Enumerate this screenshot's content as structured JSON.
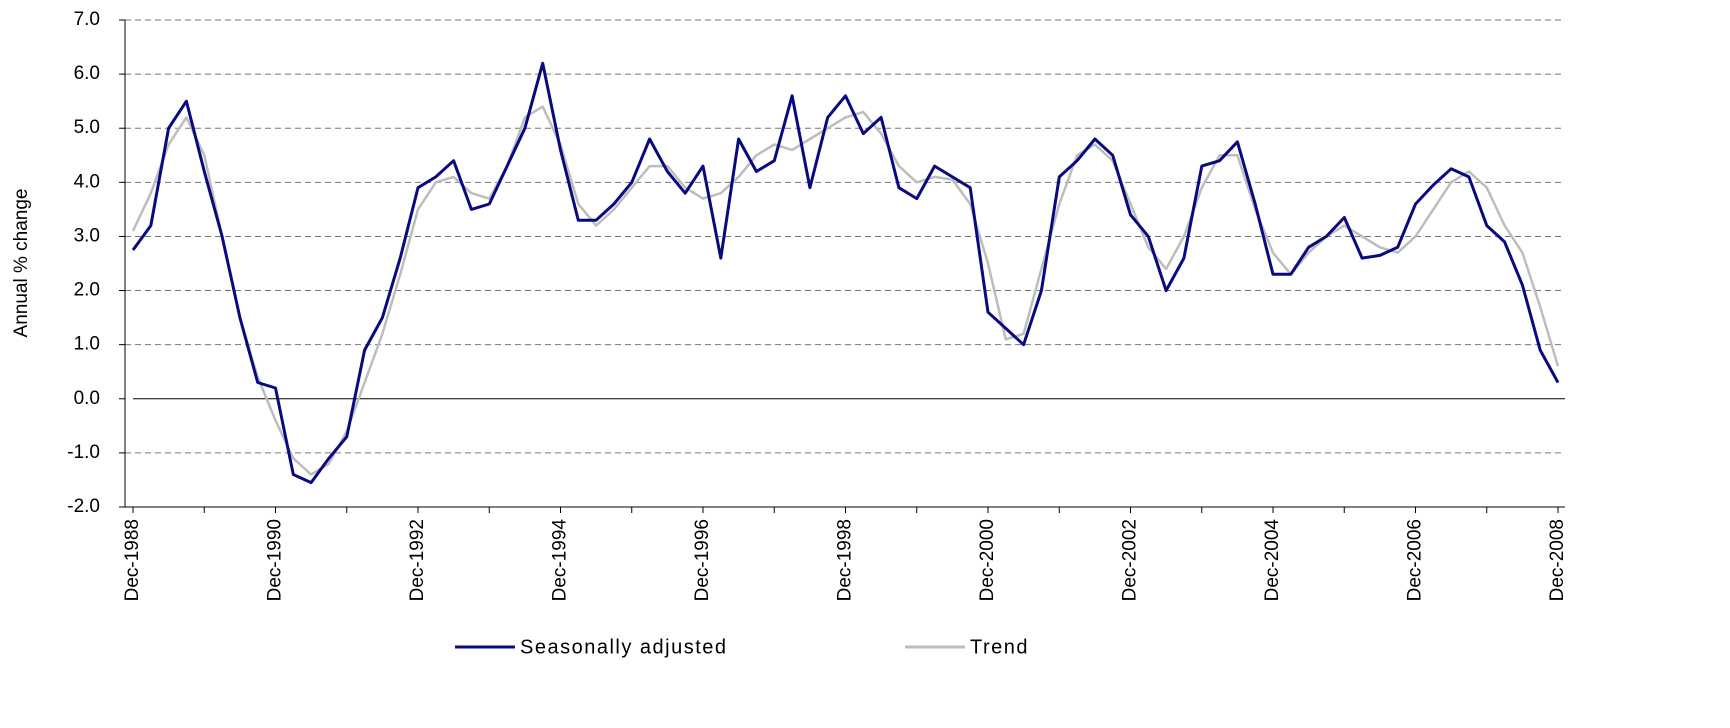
{
  "chart_data": {
    "type": "line",
    "y_label": "Annual % change",
    "categories": [
      "Dec-1988",
      null,
      null,
      null,
      null,
      null,
      null,
      null,
      "Dec-1990",
      null,
      null,
      null,
      null,
      null,
      null,
      null,
      "Dec-1992",
      null,
      null,
      null,
      null,
      null,
      null,
      null,
      "Dec-1994",
      null,
      null,
      null,
      null,
      null,
      null,
      null,
      "Dec-1996",
      null,
      null,
      null,
      null,
      null,
      null,
      null,
      "Dec-1998",
      null,
      null,
      null,
      null,
      null,
      null,
      null,
      "Dec-2000",
      null,
      null,
      null,
      null,
      null,
      null,
      null,
      "Dec-2002",
      null,
      null,
      null,
      null,
      null,
      null,
      null,
      "Dec-2004",
      null,
      null,
      null,
      null,
      null,
      null,
      null,
      "Dec-2006",
      null,
      null,
      null,
      null,
      null,
      null,
      null,
      "Dec-2008"
    ],
    "series": [
      {
        "name": "Seasonally adjusted",
        "color": "#0a0a80",
        "values": [
          2.75,
          3.2,
          5.0,
          5.5,
          4.2,
          3.0,
          1.5,
          0.3,
          0.2,
          -1.4,
          -1.55,
          -1.1,
          -0.7,
          0.9,
          1.5,
          2.6,
          3.9,
          4.1,
          4.4,
          3.5,
          3.6,
          4.3,
          5.0,
          6.2,
          4.6,
          3.3,
          3.3,
          3.6,
          4.0,
          4.8,
          4.2,
          3.8,
          4.3,
          2.6,
          4.8,
          4.2,
          4.4,
          5.6,
          3.9,
          5.2,
          5.6,
          4.9,
          5.2,
          3.9,
          3.7,
          4.3,
          4.1,
          3.9,
          1.6,
          1.3,
          1.0,
          2.0,
          4.1,
          4.4,
          4.8,
          4.5,
          3.4,
          3.0,
          2.0,
          2.6,
          4.3,
          4.4,
          4.75,
          3.6,
          2.3,
          2.3,
          2.8,
          3.0,
          3.35,
          2.6,
          2.65,
          2.8,
          3.6,
          3.95,
          4.25,
          4.1,
          3.2,
          2.9,
          2.1,
          0.9,
          0.3
        ]
      },
      {
        "name": "Trend",
        "color": "#bdbdbd",
        "values": [
          3.1,
          3.8,
          4.7,
          5.2,
          4.5,
          3.0,
          1.5,
          0.4,
          -0.4,
          -1.1,
          -1.4,
          -1.2,
          -0.6,
          0.3,
          1.2,
          2.3,
          3.5,
          4.0,
          4.1,
          3.8,
          3.7,
          4.3,
          5.2,
          5.4,
          4.7,
          3.6,
          3.2,
          3.5,
          3.9,
          4.3,
          4.3,
          3.9,
          3.7,
          3.8,
          4.1,
          4.5,
          4.7,
          4.6,
          4.8,
          5.0,
          5.2,
          5.3,
          4.9,
          4.3,
          4.0,
          4.1,
          4.05,
          3.6,
          2.5,
          1.1,
          1.2,
          2.4,
          3.6,
          4.5,
          4.7,
          4.4,
          3.6,
          2.8,
          2.4,
          3.0,
          3.9,
          4.5,
          4.5,
          3.5,
          2.7,
          2.3,
          2.7,
          3.0,
          3.2,
          3.0,
          2.8,
          2.7,
          3.0,
          3.5,
          4.0,
          4.2,
          3.9,
          3.2,
          2.7,
          1.7,
          0.6
        ]
      }
    ],
    "ylim": [
      -2,
      7
    ],
    "yticks": [
      {
        "value": -2,
        "label": "-2.0"
      },
      {
        "value": -1,
        "label": "-1.0"
      },
      {
        "value": 0,
        "label": "0.0"
      },
      {
        "value": 1,
        "label": "1.0"
      },
      {
        "value": 2,
        "label": "2.0"
      },
      {
        "value": 3,
        "label": "3.0"
      },
      {
        "value": 4,
        "label": "4.0"
      },
      {
        "value": 5,
        "label": "5.0"
      },
      {
        "value": 6,
        "label": "6.0"
      },
      {
        "value": 7,
        "label": "7.0"
      }
    ],
    "grid": true,
    "legend": "bottom"
  }
}
